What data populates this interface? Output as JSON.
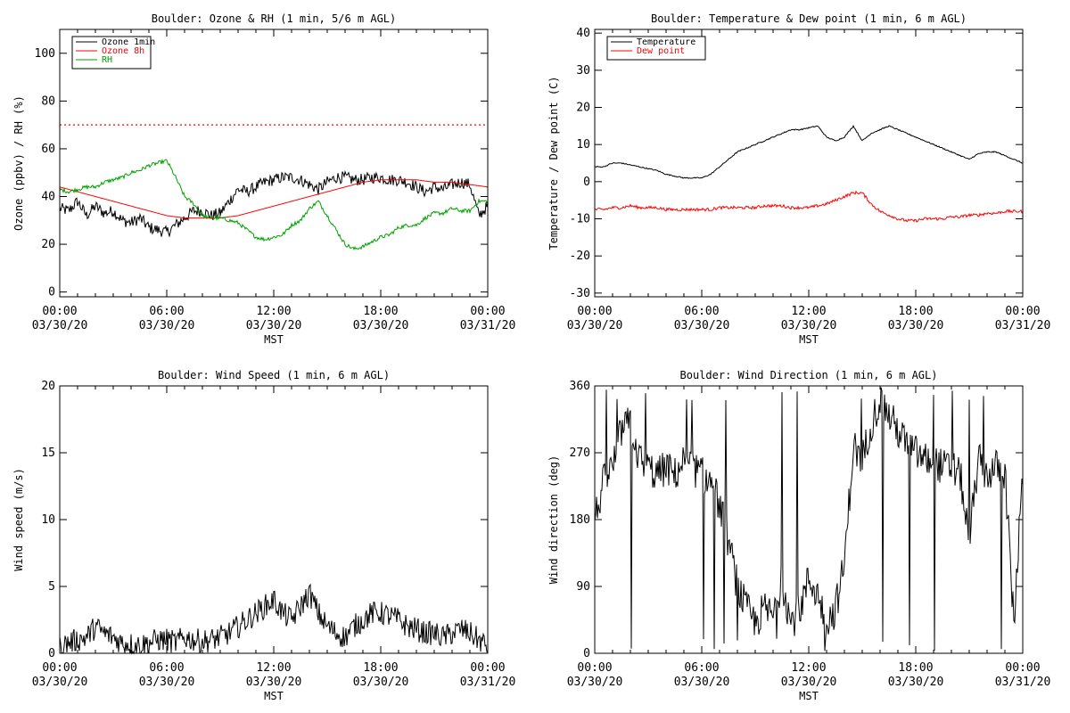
{
  "chart_data": [
    {
      "type": "line",
      "title": "Boulder: Ozone & RH (1 min, 5/6 m AGL)",
      "ylabel": "Ozone (ppbv) / RH (%)",
      "xlabel": "MST",
      "ylim": [
        -2,
        110
      ],
      "yticks": [
        0,
        20,
        40,
        60,
        80,
        100
      ],
      "xticks": [
        {
          "t": 0,
          "time": "00:00",
          "date": "03/30/20"
        },
        {
          "t": 6,
          "time": "06:00",
          "date": "03/30/20"
        },
        {
          "t": 12,
          "time": "12:00",
          "date": "03/30/20"
        },
        {
          "t": 18,
          "time": "18:00",
          "date": "03/30/20"
        },
        {
          "t": 24,
          "time": "00:00",
          "date": "03/31/20"
        }
      ],
      "legend_position": "top-left",
      "reference_lines": [
        {
          "y": 70,
          "color": "#ff0000",
          "style": "dotted"
        }
      ],
      "series": [
        {
          "name": "Ozone 1min",
          "color": "#000000",
          "noise": 2.5,
          "x": [
            0,
            0.5,
            1,
            1.5,
            2,
            2.5,
            3,
            3.5,
            4,
            4.5,
            5,
            5.5,
            6,
            6.5,
            7,
            7.5,
            8,
            8.5,
            9,
            9.5,
            10,
            10.5,
            11,
            11.5,
            12,
            12.5,
            13,
            13.5,
            14,
            14.5,
            15,
            15.5,
            16,
            16.5,
            17,
            17.5,
            18,
            18.5,
            19,
            19.5,
            20,
            20.5,
            21,
            21.5,
            22,
            22.5,
            23,
            23.5,
            24
          ],
          "values": [
            35,
            34,
            38,
            32,
            36,
            33,
            34,
            30,
            29,
            31,
            27,
            26,
            25,
            28,
            31,
            34,
            34,
            32,
            33,
            38,
            43,
            42,
            44,
            46,
            47,
            48,
            48,
            47,
            45,
            43,
            46,
            48,
            48,
            47,
            47,
            48,
            48,
            47,
            47,
            46,
            44,
            42,
            44,
            43,
            45,
            46,
            45,
            32,
            36
          ]
        },
        {
          "name": "Ozone 8h",
          "color": "#ff0000",
          "noise": 0,
          "x": [
            0,
            1,
            2,
            3,
            4,
            5,
            6,
            7,
            8,
            9,
            10,
            11,
            12,
            13,
            14,
            15,
            16,
            17,
            18,
            19,
            20,
            21,
            22,
            23,
            24
          ],
          "values": [
            44,
            42,
            40,
            38,
            36,
            34,
            32,
            31,
            31,
            31,
            32,
            34,
            36,
            38,
            40,
            42,
            44,
            46,
            47,
            47,
            47,
            46,
            46,
            45,
            44
          ]
        },
        {
          "name": "RH",
          "color": "#00a000",
          "noise": 0.8,
          "x": [
            0,
            0.5,
            1,
            1.5,
            2,
            2.5,
            3,
            3.5,
            4,
            4.5,
            5,
            5.5,
            6,
            6.5,
            7,
            7.5,
            8,
            8.5,
            9,
            9.5,
            10,
            10.5,
            11,
            11.5,
            12,
            12.5,
            13,
            13.5,
            14,
            14.5,
            15,
            15.5,
            16,
            16.5,
            17,
            17.5,
            18,
            18.5,
            19,
            19.5,
            20,
            20.5,
            21,
            21.5,
            22,
            22.5,
            23,
            23.5,
            24
          ],
          "values": [
            43,
            42,
            43,
            44,
            44,
            46,
            47,
            48,
            50,
            51,
            53,
            54,
            55,
            48,
            40,
            37,
            32,
            31,
            31,
            30,
            29,
            26,
            23,
            22,
            23,
            24,
            28,
            30,
            35,
            38,
            32,
            26,
            20,
            18,
            19,
            21,
            23,
            24,
            27,
            28,
            28,
            31,
            33,
            33,
            35,
            34,
            34,
            38,
            38
          ]
        }
      ]
    },
    {
      "type": "line",
      "title": "Boulder: Temperature & Dew point (1 min, 6 m AGL)",
      "ylabel": "Temperature / Dew point (C)",
      "xlabel": "MST",
      "ylim": [
        -31,
        41
      ],
      "yticks": [
        -30,
        -20,
        -10,
        0,
        10,
        20,
        30,
        40
      ],
      "xticks": [
        {
          "t": 0,
          "time": "00:00",
          "date": "03/30/20"
        },
        {
          "t": 6,
          "time": "06:00",
          "date": "03/30/20"
        },
        {
          "t": 12,
          "time": "12:00",
          "date": "03/30/20"
        },
        {
          "t": 18,
          "time": "18:00",
          "date": "03/30/20"
        },
        {
          "t": 24,
          "time": "00:00",
          "date": "03/31/20"
        }
      ],
      "legend_position": "top-left",
      "reference_lines": [],
      "series": [
        {
          "name": "Temperature",
          "color": "#000000",
          "noise": 0.15,
          "x": [
            0,
            0.5,
            1,
            1.5,
            2,
            2.5,
            3,
            3.5,
            4,
            4.5,
            5,
            5.5,
            6,
            6.5,
            7,
            7.5,
            8,
            8.5,
            9,
            9.5,
            10,
            10.5,
            11,
            11.5,
            12,
            12.5,
            13,
            13.5,
            14,
            14.5,
            15,
            15.5,
            16,
            16.5,
            17,
            17.5,
            18,
            18.5,
            19,
            19.5,
            20,
            20.5,
            21,
            21.5,
            22,
            22.5,
            23,
            23.5,
            24
          ],
          "values": [
            4,
            4,
            5,
            5,
            4.5,
            4,
            3.5,
            3,
            2,
            1.5,
            1,
            1,
            1,
            2,
            4,
            6,
            8,
            9,
            10,
            11,
            12,
            13,
            14,
            14,
            14.5,
            15,
            12,
            11,
            12,
            15,
            11,
            13,
            14,
            15,
            14,
            13,
            12,
            11,
            10,
            9,
            8,
            7,
            6,
            7.5,
            8,
            8,
            7,
            6,
            5
          ]
        },
        {
          "name": "Dew point",
          "color": "#ff0000",
          "noise": 0.4,
          "x": [
            0,
            0.5,
            1,
            1.5,
            2,
            2.5,
            3,
            3.5,
            4,
            4.5,
            5,
            5.5,
            6,
            6.5,
            7,
            7.5,
            8,
            8.5,
            9,
            9.5,
            10,
            10.5,
            11,
            11.5,
            12,
            12.5,
            13,
            13.5,
            14,
            14.5,
            15,
            15.5,
            16,
            16.5,
            17,
            17.5,
            18,
            18.5,
            19,
            19.5,
            20,
            20.5,
            21,
            21.5,
            22,
            22.5,
            23,
            23.5,
            24
          ],
          "values": [
            -7.5,
            -7.5,
            -7,
            -7,
            -6.5,
            -7,
            -7,
            -7,
            -7.5,
            -7.5,
            -7.5,
            -7.5,
            -7.5,
            -7.5,
            -7,
            -7,
            -7,
            -7,
            -7,
            -6.5,
            -6.5,
            -6.5,
            -7,
            -7,
            -7,
            -6.5,
            -6,
            -5,
            -4,
            -3,
            -3,
            -6,
            -8,
            -9,
            -10,
            -10.5,
            -10.5,
            -10,
            -10,
            -10,
            -9.5,
            -9.5,
            -9,
            -9,
            -8.5,
            -8.5,
            -8,
            -8,
            -8
          ]
        }
      ]
    },
    {
      "type": "line",
      "title": "Boulder: Wind Speed (1 min, 6 m AGL)",
      "ylabel": "Wind speed (m/s)",
      "xlabel": "MST",
      "ylim": [
        0,
        20
      ],
      "yticks": [
        0,
        5,
        10,
        15,
        20
      ],
      "xticks": [
        {
          "t": 0,
          "time": "00:00",
          "date": "03/30/20"
        },
        {
          "t": 6,
          "time": "06:00",
          "date": "03/30/20"
        },
        {
          "t": 12,
          "time": "12:00",
          "date": "03/30/20"
        },
        {
          "t": 18,
          "time": "18:00",
          "date": "03/30/20"
        },
        {
          "t": 24,
          "time": "00:00",
          "date": "03/31/20"
        }
      ],
      "legend_position": "none",
      "reference_lines": [],
      "series": [
        {
          "color": "#000000",
          "noise": 0.9,
          "floor": 0,
          "x": [
            0,
            0.5,
            1,
            1.5,
            2,
            2.5,
            3,
            3.5,
            4,
            4.5,
            5,
            5.5,
            6,
            6.5,
            7,
            7.5,
            8,
            8.5,
            9,
            9.5,
            10,
            10.5,
            11,
            11.5,
            12,
            12.5,
            13,
            13.5,
            14,
            14.5,
            15,
            15.5,
            16,
            16.5,
            17,
            17.5,
            18,
            18.5,
            19,
            19.5,
            20,
            20.5,
            21,
            21.5,
            22,
            22.5,
            23,
            23.5,
            24
          ],
          "values": [
            0.5,
            0.8,
            1,
            1.2,
            2,
            1.5,
            1.2,
            0.8,
            0.7,
            0.6,
            0.8,
            1,
            1,
            0.8,
            1.2,
            1,
            0.9,
            1,
            1.2,
            1.5,
            2,
            2.5,
            3,
            3.5,
            4,
            3,
            2.5,
            3.5,
            4.5,
            3,
            2,
            1.5,
            1.2,
            2,
            2.5,
            3,
            3,
            2.8,
            2.5,
            2,
            1.8,
            1.5,
            1.5,
            1.2,
            1.5,
            1.8,
            1.5,
            1,
            0.5
          ]
        }
      ]
    },
    {
      "type": "line",
      "title": "Boulder: Wind Direction (1 min, 6 m AGL)",
      "ylabel": "Wind direction (deg)",
      "xlabel": "MST",
      "ylim": [
        0,
        360
      ],
      "yticks": [
        0,
        90,
        180,
        270,
        360
      ],
      "xticks": [
        {
          "t": 0,
          "time": "00:00",
          "date": "03/30/20"
        },
        {
          "t": 6,
          "time": "06:00",
          "date": "03/30/20"
        },
        {
          "t": 12,
          "time": "12:00",
          "date": "03/30/20"
        },
        {
          "t": 18,
          "time": "18:00",
          "date": "03/30/20"
        },
        {
          "t": 24,
          "time": "00:00",
          "date": "03/31/20"
        }
      ],
      "legend_position": "none",
      "reference_lines": [],
      "series": [
        {
          "color": "#000000",
          "noise": 25,
          "floor": 0,
          "ceil": 360,
          "x": [
            0,
            0.5,
            1,
            1.5,
            2,
            2.5,
            3,
            3.5,
            4,
            4.5,
            5,
            5.5,
            6,
            6.5,
            7,
            7.5,
            8,
            8.5,
            9,
            9.5,
            10,
            10.5,
            11,
            11.5,
            12,
            12.5,
            13,
            13.5,
            14,
            14.5,
            15,
            15.5,
            16,
            16.5,
            17,
            17.5,
            18,
            18.5,
            19,
            19.5,
            20,
            20.5,
            21,
            21.5,
            22,
            22.5,
            23,
            23.5,
            24
          ],
          "values": [
            180,
            230,
            250,
            300,
            310,
            260,
            250,
            240,
            250,
            240,
            260,
            250,
            240,
            230,
            200,
            150,
            90,
            60,
            40,
            60,
            50,
            100,
            40,
            60,
            100,
            80,
            40,
            60,
            120,
            280,
            260,
            310,
            340,
            320,
            300,
            280,
            270,
            260,
            260,
            250,
            250,
            240,
            150,
            260,
            240,
            250,
            245,
            40,
            240
          ]
        }
      ]
    }
  ],
  "legend_entries": [
    {
      "panel": 0,
      "entries": [
        "Ozone 1min",
        "Ozone 8h",
        "RH"
      ]
    },
    {
      "panel": 1,
      "entries": [
        "Temperature",
        "Dew point"
      ]
    }
  ]
}
